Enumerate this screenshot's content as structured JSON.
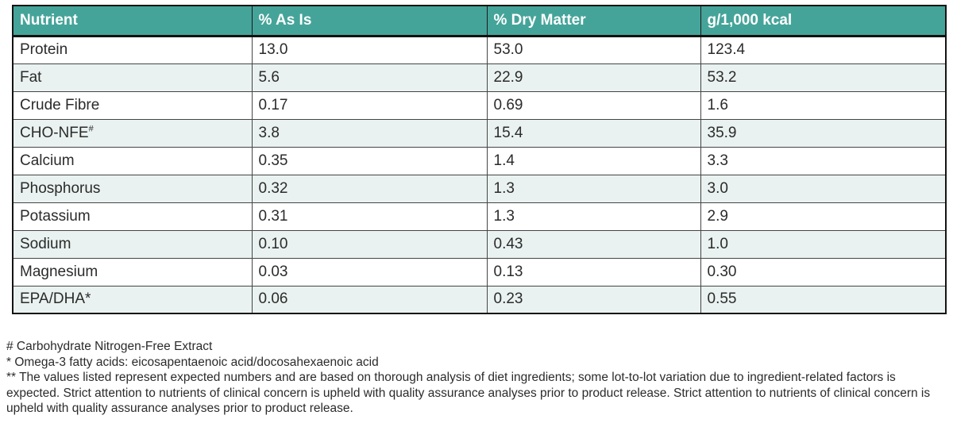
{
  "table": {
    "columns": [
      "Nutrient",
      "% As Is",
      "% Dry Matter",
      "g/1,000 kcal"
    ],
    "rows": [
      {
        "name": "Protein",
        "sup": "",
        "values": [
          "13.0",
          "53.0",
          "123.4"
        ]
      },
      {
        "name": "Fat",
        "sup": "",
        "values": [
          "5.6",
          "22.9",
          "53.2"
        ]
      },
      {
        "name": "Crude Fibre",
        "sup": "",
        "values": [
          "0.17",
          "0.69",
          "1.6"
        ]
      },
      {
        "name": "CHO-NFE",
        "sup": "#",
        "values": [
          "3.8",
          "15.4",
          "35.9"
        ]
      },
      {
        "name": "Calcium",
        "sup": "",
        "values": [
          "0.35",
          "1.4",
          "3.3"
        ]
      },
      {
        "name": "Phosphorus",
        "sup": "",
        "values": [
          "0.32",
          "1.3",
          "3.0"
        ]
      },
      {
        "name": "Potassium",
        "sup": "",
        "values": [
          "0.31",
          "1.3",
          "2.9"
        ]
      },
      {
        "name": "Sodium",
        "sup": "",
        "values": [
          "0.10",
          "0.43",
          "1.0"
        ]
      },
      {
        "name": "Magnesium",
        "sup": "",
        "values": [
          "0.03",
          "0.13",
          "0.30"
        ]
      },
      {
        "name": "EPA/DHA*",
        "sup": "",
        "values": [
          "0.06",
          "0.23",
          "0.55"
        ]
      }
    ]
  },
  "footnotes": [
    "# Carbohydrate Nitrogen-Free Extract",
    "* Omega-3 fatty acids: eicosapentaenoic acid/docosahexaenoic acid",
    "** The values listed represent expected numbers and are based on thorough analysis of diet ingredients; some lot-to-lot variation due to ingredient-related factors is expected. Strict attention to nutrients of clinical concern is upheld with quality assurance analyses prior to product release. Strict attention to nutrients of clinical concern is upheld with quality assurance analyses prior to product release."
  ],
  "colors": {
    "header_bg": "#45a499",
    "row_tint": "#e9f2f0",
    "header_text": "#ffffff",
    "body_text": "#2b2b2b"
  }
}
